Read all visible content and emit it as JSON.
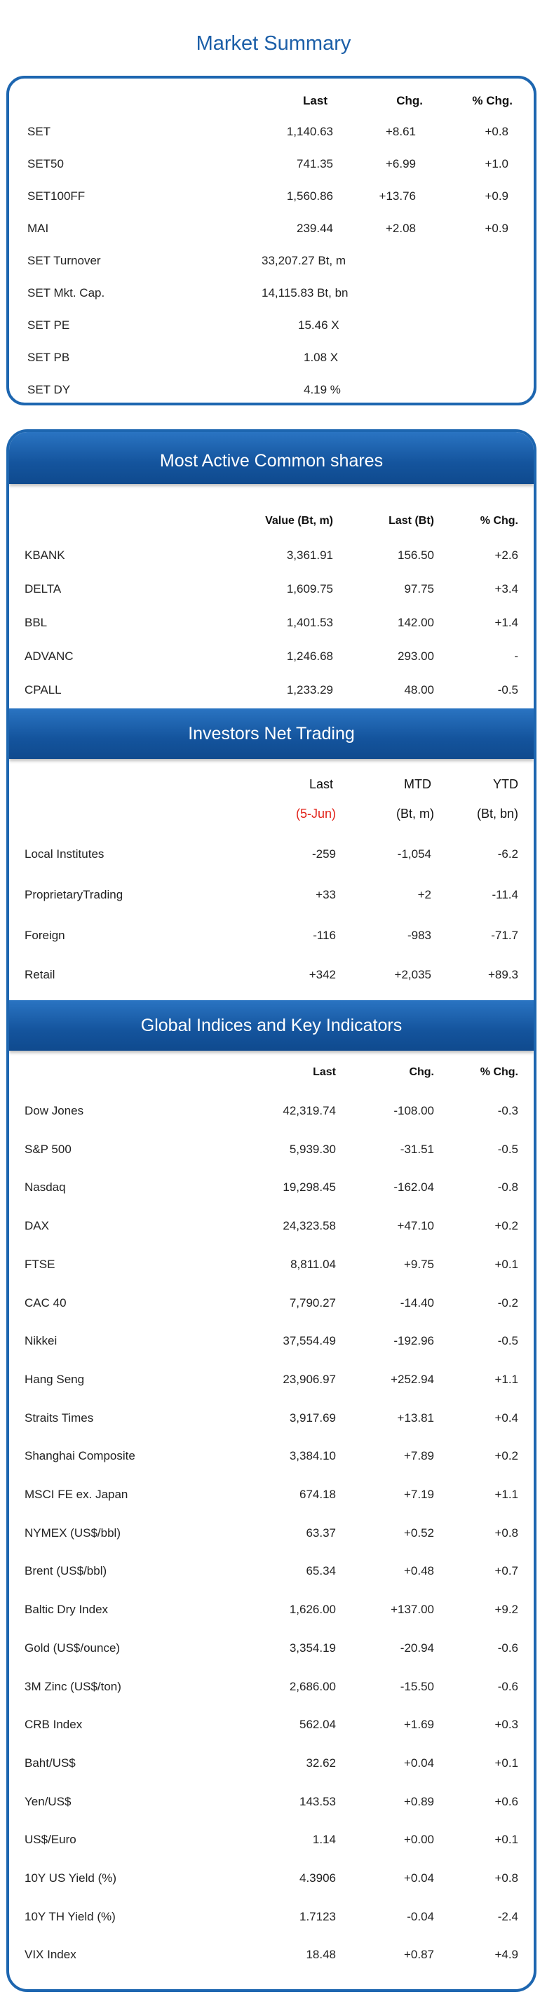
{
  "title": "Market Summary",
  "market_summary": {
    "headers": {
      "last": "Last",
      "chg": "Chg.",
      "pct": "% Chg."
    },
    "rows": [
      {
        "name": "SET",
        "last": "1,140.63",
        "chg": "+8.61",
        "pct": "+0.8"
      },
      {
        "name": "SET50",
        "last": "741.35",
        "chg": "+6.99",
        "pct": "+1.0"
      },
      {
        "name": "SET100FF",
        "last": "1,560.86",
        "chg": "+13.76",
        "pct": "+0.9"
      },
      {
        "name": "MAI",
        "last": "239.44",
        "chg": "+2.08",
        "pct": "+0.9"
      }
    ],
    "stats": [
      {
        "name": "SET Turnover",
        "value": "33,207.27 Bt, m"
      },
      {
        "name": "SET Mkt. Cap.",
        "value": "14,115.83 Bt, bn"
      },
      {
        "name": "SET PE",
        "value": "15.46 X"
      },
      {
        "name": "SET PB",
        "value": "1.08 X"
      },
      {
        "name": "SET DY",
        "value": "4.19 %"
      }
    ]
  },
  "most_active": {
    "title": "Most Active Common shares",
    "headers": {
      "value": "Value (Bt, m)",
      "last": "Last (Bt)",
      "pct": "% Chg."
    },
    "rows": [
      {
        "name": "KBANK",
        "value": "3,361.91",
        "last": "156.50",
        "pct": "+2.6"
      },
      {
        "name": "DELTA",
        "value": "1,609.75",
        "last": "97.75",
        "pct": "+3.4"
      },
      {
        "name": "BBL",
        "value": "1,401.53",
        "last": "142.00",
        "pct": "+1.4"
      },
      {
        "name": "ADVANC",
        "value": "1,246.68",
        "last": "293.00",
        "pct": "-"
      },
      {
        "name": "CPALL",
        "value": "1,233.29",
        "last": "48.00",
        "pct": "-0.5"
      }
    ]
  },
  "investors": {
    "title": "Investors Net Trading",
    "headers": {
      "last": "Last",
      "mtd": "MTD",
      "ytd": "YTD",
      "last_sub": "(5-Jun)",
      "mtd_sub": "(Bt, m)",
      "ytd_sub": "(Bt, bn)"
    },
    "rows": [
      {
        "name": "Local Institutes",
        "last": "-259",
        "mtd": "-1,054",
        "ytd": "-6.2"
      },
      {
        "name": "ProprietaryTrading",
        "last": "+33",
        "mtd": "+2",
        "ytd": "-11.4"
      },
      {
        "name": "Foreign",
        "last": "-116",
        "mtd": "-983",
        "ytd": "-71.7"
      },
      {
        "name": "Retail",
        "last": "+342",
        "mtd": "+2,035",
        "ytd": "+89.3"
      }
    ]
  },
  "global": {
    "title": "Global Indices and Key Indicators",
    "headers": {
      "last": "Last",
      "chg": "Chg.",
      "pct": "% Chg."
    },
    "rows": [
      {
        "name": "Dow Jones",
        "last": "42,319.74",
        "chg": "-108.00",
        "pct": "-0.3"
      },
      {
        "name": "S&P 500",
        "last": "5,939.30",
        "chg": "-31.51",
        "pct": "-0.5"
      },
      {
        "name": "Nasdaq",
        "last": "19,298.45",
        "chg": "-162.04",
        "pct": "-0.8"
      },
      {
        "name": "DAX",
        "last": "24,323.58",
        "chg": "+47.10",
        "pct": "+0.2"
      },
      {
        "name": "FTSE",
        "last": "8,811.04",
        "chg": "+9.75",
        "pct": "+0.1"
      },
      {
        "name": "CAC 40",
        "last": "7,790.27",
        "chg": "-14.40",
        "pct": "-0.2"
      },
      {
        "name": "Nikkei",
        "last": "37,554.49",
        "chg": "-192.96",
        "pct": "-0.5"
      },
      {
        "name": "Hang Seng",
        "last": "23,906.97",
        "chg": "+252.94",
        "pct": "+1.1"
      },
      {
        "name": "Straits Times",
        "last": "3,917.69",
        "chg": "+13.81",
        "pct": "+0.4"
      },
      {
        "name": "Shanghai Composite",
        "last": "3,384.10",
        "chg": "+7.89",
        "pct": "+0.2"
      },
      {
        "name": "MSCI FE ex. Japan",
        "last": "674.18",
        "chg": "+7.19",
        "pct": "+1.1"
      },
      {
        "name": "NYMEX (US$/bbl)",
        "last": "63.37",
        "chg": "+0.52",
        "pct": "+0.8"
      },
      {
        "name": "Brent (US$/bbl)",
        "last": "65.34",
        "chg": "+0.48",
        "pct": "+0.7"
      },
      {
        "name": "Baltic Dry Index",
        "last": "1,626.00",
        "chg": "+137.00",
        "pct": "+9.2"
      },
      {
        "name": "Gold (US$/ounce)",
        "last": "3,354.19",
        "chg": "-20.94",
        "pct": "-0.6"
      },
      {
        "name": "3M Zinc (US$/ton)",
        "last": "2,686.00",
        "chg": "-15.50",
        "pct": "-0.6"
      },
      {
        "name": "CRB Index",
        "last": "562.04",
        "chg": "+1.69",
        "pct": "+0.3"
      },
      {
        "name": "Baht/US$",
        "last": "32.62",
        "chg": "+0.04",
        "pct": "+0.1"
      },
      {
        "name": "Yen/US$",
        "last": "143.53",
        "chg": "+0.89",
        "pct": "+0.6"
      },
      {
        "name": "US$/Euro",
        "last": "1.14",
        "chg": "+0.00",
        "pct": "+0.1"
      },
      {
        "name": "10Y US Yield (%)",
        "last": "4.3906",
        "chg": "+0.04",
        "pct": "+0.8"
      },
      {
        "name": "10Y TH Yield (%)",
        "last": "1.7123",
        "chg": "-0.04",
        "pct": "-2.4"
      },
      {
        "name": "VIX Index",
        "last": "18.48",
        "chg": "+0.87",
        "pct": "+4.9"
      }
    ]
  }
}
